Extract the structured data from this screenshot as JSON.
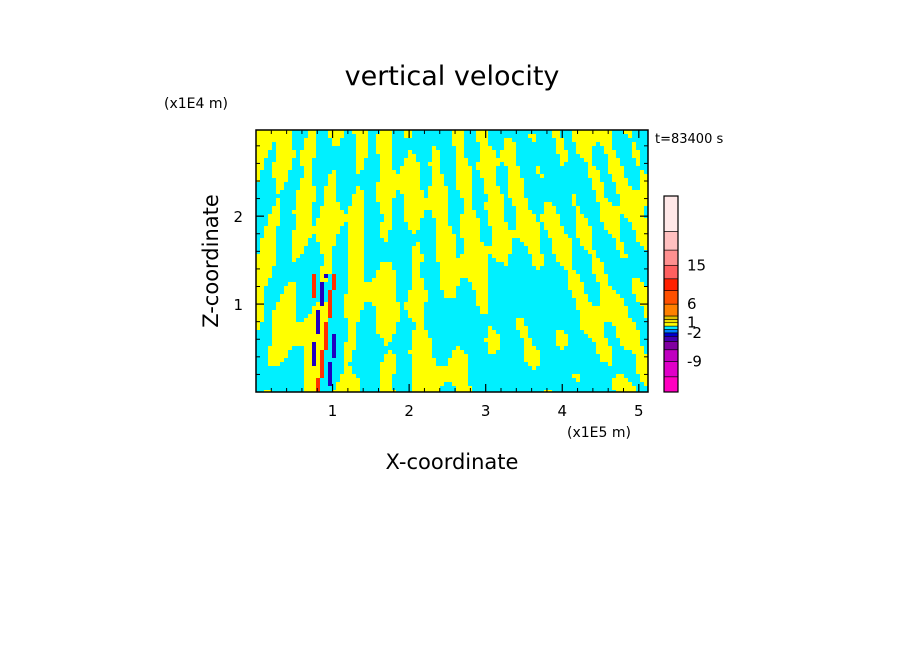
{
  "chart_data": {
    "type": "heatmap",
    "title": "vertical velocity",
    "time_label": "t=83400 s",
    "xlabel": "X-coordinate",
    "ylabel": "Z-coordinate",
    "x_unit": "(x1E5 m)",
    "y_unit": "(x1E4 m)",
    "xlim": [
      0,
      5.12
    ],
    "ylim": [
      0,
      2.98
    ],
    "xticks": [
      "1",
      "2",
      "3",
      "4",
      "5"
    ],
    "xtick_values": [
      1,
      2,
      3,
      4,
      5
    ],
    "yticks": [
      "1",
      "2"
    ],
    "ytick_values": [
      1,
      2
    ],
    "colorbar": {
      "labels": [
        "15",
        "6",
        "1",
        "-2",
        "-9"
      ],
      "label_values": [
        15,
        6,
        1,
        -2,
        -9
      ],
      "bands": [
        {
          "color": "#ff00c0"
        },
        {
          "color": "#e000c8"
        },
        {
          "color": "#c000c0"
        },
        {
          "color": "#8000a0"
        },
        {
          "color": "#4000b0"
        },
        {
          "color": "#0000d0"
        },
        {
          "color": "#0080ff"
        },
        {
          "color": "#00e8ff"
        },
        {
          "color": "#ffff00"
        },
        {
          "color": "#f0e000"
        },
        {
          "color": "#e0c000"
        },
        {
          "color": "#ff8000"
        },
        {
          "color": "#ff5000"
        },
        {
          "color": "#ff2000"
        },
        {
          "color": "#ff6060"
        },
        {
          "color": "#ff9090"
        },
        {
          "color": "#ffc0c0"
        },
        {
          "color": "#ffe8e8"
        }
      ]
    },
    "field_colors": {
      "negative": "#00f0ff",
      "positive": "#ffff00",
      "strong_positive": "#ff3000",
      "strong_negative": "#2000c0"
    }
  }
}
